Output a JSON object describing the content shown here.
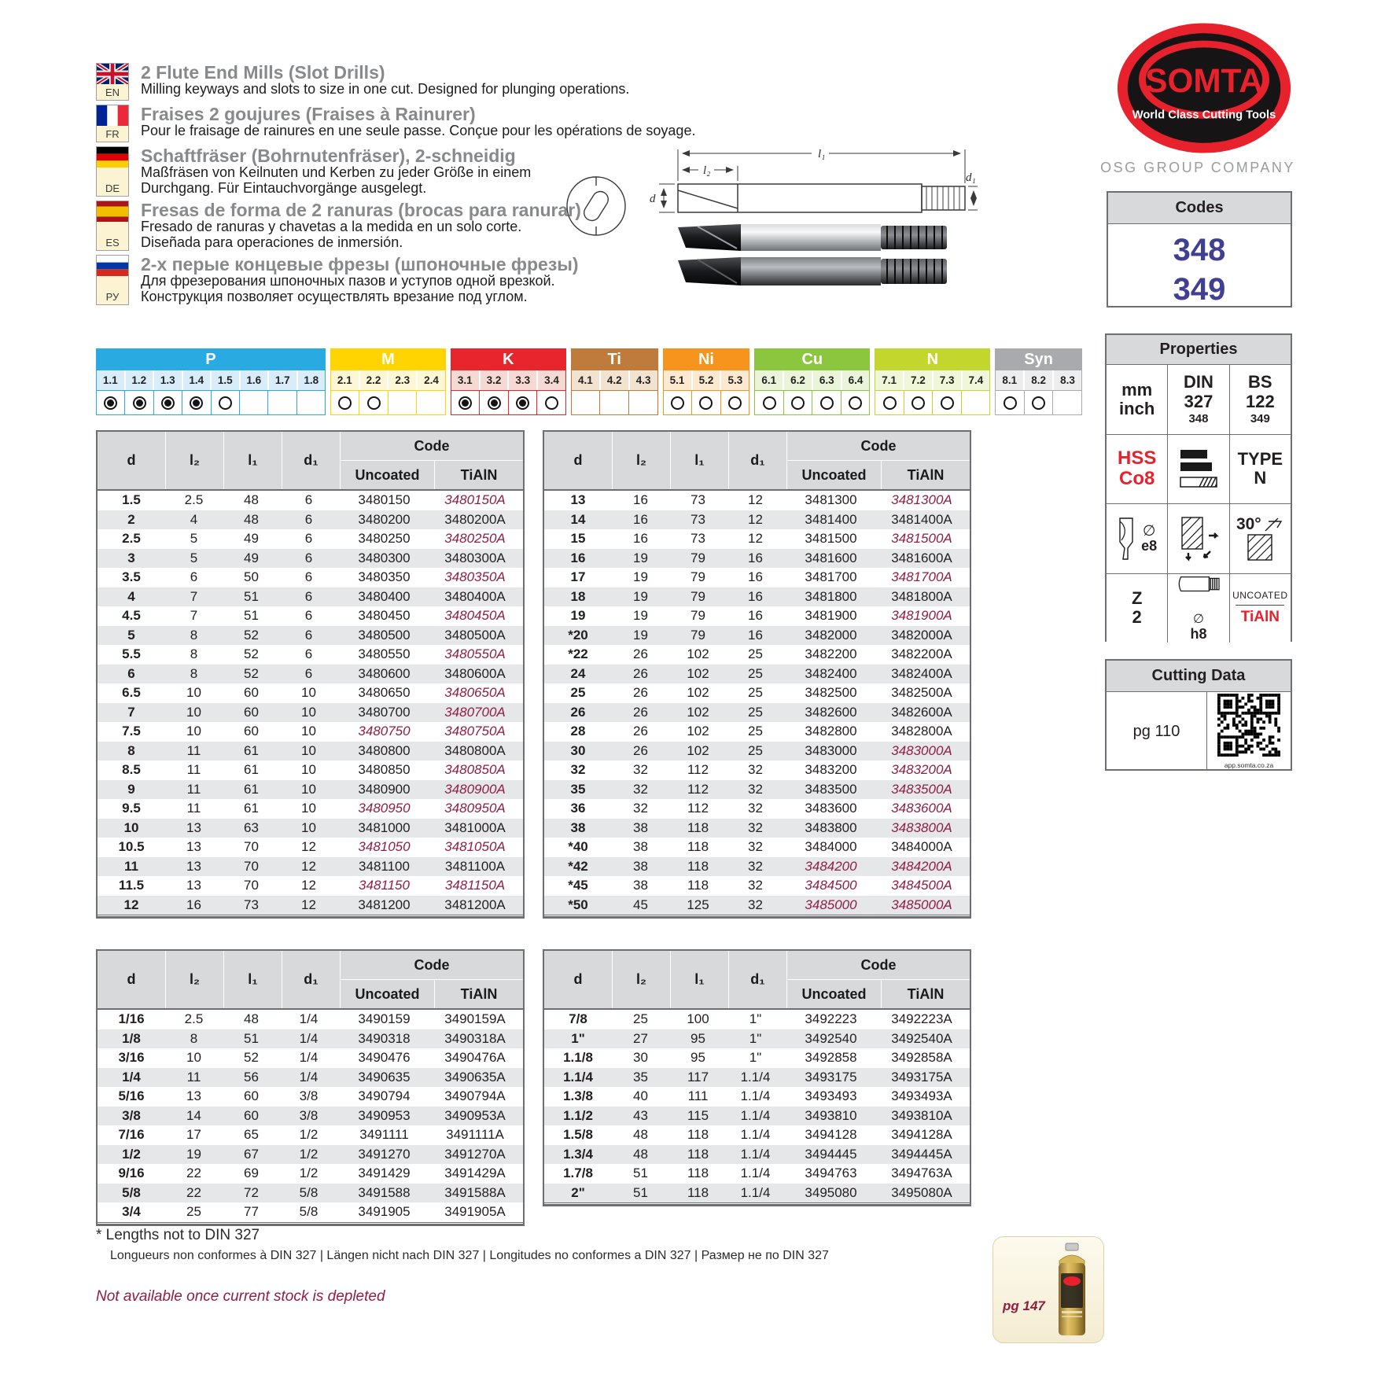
{
  "header": {
    "languages": [
      {
        "code": "EN",
        "title": "2 Flute End Mills (Slot Drills)",
        "desc": "Milling keyways and slots to size in one cut. Designed for plunging operations."
      },
      {
        "code": "FR",
        "title": "Fraises 2 goujures (Fraises à Rainurer)",
        "desc": "Pour le fraisage de rainures en une seule passe. Conçue pour les opérations de soyage."
      },
      {
        "code": "DE",
        "title": "Schaftfräser (Bohrnutenfräser), 2-schneidig",
        "desc": "Maßfräsen von Keilnuten und Kerben zu jeder Größe in einem\nDurchgang. Für Eintauchvorgänge ausgelegt."
      },
      {
        "code": "ES",
        "title": "Fresas de forma de 2 ranuras (brocas para ranurar)",
        "desc": "Fresado de ranuras y chavetas a la medida en un solo corte.\nDiseñada para operaciones de inmersión."
      },
      {
        "code": "РУ",
        "title": "2-х перые концевые фрезы (шпоночные фрезы)",
        "desc": "Для фрезерования шпоночных пазов и уступов одной врезкой.\nКонструкция позволяет осуществлять врезание под углом."
      }
    ],
    "diagram_labels": {
      "l1": "l₁",
      "l2": "l₂",
      "d": "d",
      "d1": "d₁"
    }
  },
  "materials": {
    "groups": [
      {
        "name": "P",
        "color": "#29abe2",
        "tint": "#d8ecf9",
        "cells": [
          [
            "1.1",
            "filled"
          ],
          [
            "1.2",
            "filled"
          ],
          [
            "1.3",
            "filled"
          ],
          [
            "1.4",
            "filled"
          ],
          [
            "1.5",
            "empty"
          ],
          [
            "1.6",
            "none"
          ],
          [
            "1.7",
            "none"
          ],
          [
            "1.8",
            "none"
          ]
        ]
      },
      {
        "name": "M",
        "color": "#ffd400",
        "tint": "#fdf7d5",
        "cells": [
          [
            "2.1",
            "empty"
          ],
          [
            "2.2",
            "empty"
          ],
          [
            "2.3",
            "none"
          ],
          [
            "2.4",
            "none"
          ]
        ]
      },
      {
        "name": "K",
        "color": "#e8252d",
        "tint": "#f6d9d2",
        "cells": [
          [
            "3.1",
            "filled"
          ],
          [
            "3.2",
            "filled"
          ],
          [
            "3.3",
            "filled"
          ],
          [
            "3.4",
            "empty"
          ]
        ]
      },
      {
        "name": "Ti",
        "color": "#bf7b3c",
        "tint": "#f2e2d0",
        "cells": [
          [
            "4.1",
            "none"
          ],
          [
            "4.2",
            "none"
          ],
          [
            "4.3",
            "none"
          ]
        ]
      },
      {
        "name": "Ni",
        "color": "#f7941e",
        "tint": "#fde9d0",
        "cells": [
          [
            "5.1",
            "empty"
          ],
          [
            "5.2",
            "empty"
          ],
          [
            "5.3",
            "empty"
          ]
        ]
      },
      {
        "name": "Cu",
        "color": "#8cc63f",
        "tint": "#e9f4d8",
        "cells": [
          [
            "6.1",
            "empty"
          ],
          [
            "6.2",
            "empty"
          ],
          [
            "6.3",
            "empty"
          ],
          [
            "6.4",
            "empty"
          ]
        ]
      },
      {
        "name": "N",
        "color": "#c3d62e",
        "tint": "#f0f6d8",
        "cells": [
          [
            "7.1",
            "empty"
          ],
          [
            "7.2",
            "empty"
          ],
          [
            "7.3",
            "empty"
          ],
          [
            "7.4",
            "none"
          ]
        ]
      },
      {
        "name": "Syn",
        "color": "#a8aaad",
        "tint": "#ededee",
        "cells": [
          [
            "8.1",
            "empty"
          ],
          [
            "8.2",
            "empty"
          ],
          [
            "8.3",
            "none"
          ]
        ]
      }
    ]
  },
  "tables": {
    "headers": {
      "d": "d",
      "l2": "l₂",
      "l1": "l₁",
      "d1": "d₁",
      "code": "Code",
      "uncoated": "Uncoated",
      "tialn": "TiAlN"
    },
    "t1": {
      "rows": [
        [
          "1.5",
          "2.5",
          "48",
          "6",
          "3480150",
          "3480150A",
          0,
          1
        ],
        [
          "2",
          "4",
          "48",
          "6",
          "3480200",
          "3480200A",
          0,
          0
        ],
        [
          "2.5",
          "5",
          "49",
          "6",
          "3480250",
          "3480250A",
          0,
          1
        ],
        [
          "3",
          "5",
          "49",
          "6",
          "3480300",
          "3480300A",
          0,
          0
        ],
        [
          "3.5",
          "6",
          "50",
          "6",
          "3480350",
          "3480350A",
          0,
          1
        ],
        [
          "4",
          "7",
          "51",
          "6",
          "3480400",
          "3480400A",
          0,
          0
        ],
        [
          "4.5",
          "7",
          "51",
          "6",
          "3480450",
          "3480450A",
          0,
          1
        ],
        [
          "5",
          "8",
          "52",
          "6",
          "3480500",
          "3480500A",
          0,
          0
        ],
        [
          "5.5",
          "8",
          "52",
          "6",
          "3480550",
          "3480550A",
          0,
          1
        ],
        [
          "6",
          "8",
          "52",
          "6",
          "3480600",
          "3480600A",
          0,
          0
        ],
        [
          "6.5",
          "10",
          "60",
          "10",
          "3480650",
          "3480650A",
          0,
          1
        ],
        [
          "7",
          "10",
          "60",
          "10",
          "3480700",
          "3480700A",
          0,
          1
        ],
        [
          "7.5",
          "10",
          "60",
          "10",
          "3480750",
          "3480750A",
          1,
          1
        ],
        [
          "8",
          "11",
          "61",
          "10",
          "3480800",
          "3480800A",
          0,
          0
        ],
        [
          "8.5",
          "11",
          "61",
          "10",
          "3480850",
          "3480850A",
          0,
          1
        ],
        [
          "9",
          "11",
          "61",
          "10",
          "3480900",
          "3480900A",
          0,
          1
        ],
        [
          "9.5",
          "11",
          "61",
          "10",
          "3480950",
          "3480950A",
          1,
          1
        ],
        [
          "10",
          "13",
          "63",
          "10",
          "3481000",
          "3481000A",
          0,
          0
        ],
        [
          "10.5",
          "13",
          "70",
          "12",
          "3481050",
          "3481050A",
          1,
          1
        ],
        [
          "11",
          "13",
          "70",
          "12",
          "3481100",
          "3481100A",
          0,
          0
        ],
        [
          "11.5",
          "13",
          "70",
          "12",
          "3481150",
          "3481150A",
          1,
          1
        ],
        [
          "12",
          "16",
          "73",
          "12",
          "3481200",
          "3481200A",
          0,
          0
        ]
      ]
    },
    "t2": {
      "rows": [
        [
          "13",
          "16",
          "73",
          "12",
          "3481300",
          "3481300A",
          0,
          1
        ],
        [
          "14",
          "16",
          "73",
          "12",
          "3481400",
          "3481400A",
          0,
          0
        ],
        [
          "15",
          "16",
          "73",
          "12",
          "3481500",
          "3481500A",
          0,
          1
        ],
        [
          "16",
          "19",
          "79",
          "16",
          "3481600",
          "3481600A",
          0,
          0
        ],
        [
          "17",
          "19",
          "79",
          "16",
          "3481700",
          "3481700A",
          0,
          1
        ],
        [
          "18",
          "19",
          "79",
          "16",
          "3481800",
          "3481800A",
          0,
          0
        ],
        [
          "19",
          "19",
          "79",
          "16",
          "3481900",
          "3481900A",
          0,
          1
        ],
        [
          "*20",
          "19",
          "79",
          "16",
          "3482000",
          "3482000A",
          0,
          0
        ],
        [
          "*22",
          "26",
          "102",
          "25",
          "3482200",
          "3482200A",
          0,
          0
        ],
        [
          "24",
          "26",
          "102",
          "25",
          "3482400",
          "3482400A",
          0,
          0
        ],
        [
          "25",
          "26",
          "102",
          "25",
          "3482500",
          "3482500A",
          0,
          0
        ],
        [
          "26",
          "26",
          "102",
          "25",
          "3482600",
          "3482600A",
          0,
          0
        ],
        [
          "28",
          "26",
          "102",
          "25",
          "3482800",
          "3482800A",
          0,
          0
        ],
        [
          "30",
          "26",
          "102",
          "25",
          "3483000",
          "3483000A",
          0,
          1
        ],
        [
          "32",
          "32",
          "112",
          "32",
          "3483200",
          "3483200A",
          0,
          1
        ],
        [
          "35",
          "32",
          "112",
          "32",
          "3483500",
          "3483500A",
          0,
          1
        ],
        [
          "36",
          "32",
          "112",
          "32",
          "3483600",
          "3483600A",
          0,
          1
        ],
        [
          "38",
          "38",
          "118",
          "32",
          "3483800",
          "3483800A",
          0,
          1
        ],
        [
          "*40",
          "38",
          "118",
          "32",
          "3484000",
          "3484000A",
          0,
          0
        ],
        [
          "*42",
          "38",
          "118",
          "32",
          "3484200",
          "3484200A",
          1,
          1
        ],
        [
          "*45",
          "38",
          "118",
          "32",
          "3484500",
          "3484500A",
          1,
          1
        ],
        [
          "*50",
          "45",
          "125",
          "32",
          "3485000",
          "3485000A",
          1,
          1
        ]
      ]
    },
    "t3": {
      "rows": [
        [
          "1/16",
          "2.5",
          "48",
          "1/4",
          "3490159",
          "3490159A",
          0,
          0
        ],
        [
          "1/8",
          "8",
          "51",
          "1/4",
          "3490318",
          "3490318A",
          0,
          0
        ],
        [
          "3/16",
          "10",
          "52",
          "1/4",
          "3490476",
          "3490476A",
          0,
          0
        ],
        [
          "1/4",
          "11",
          "56",
          "1/4",
          "3490635",
          "3490635A",
          0,
          0
        ],
        [
          "5/16",
          "13",
          "60",
          "3/8",
          "3490794",
          "3490794A",
          0,
          0
        ],
        [
          "3/8",
          "14",
          "60",
          "3/8",
          "3490953",
          "3490953A",
          0,
          0
        ],
        [
          "7/16",
          "17",
          "65",
          "1/2",
          "3491111",
          "3491111A",
          0,
          0
        ],
        [
          "1/2",
          "19",
          "67",
          "1/2",
          "3491270",
          "3491270A",
          0,
          0
        ],
        [
          "9/16",
          "22",
          "69",
          "1/2",
          "3491429",
          "3491429A",
          0,
          0
        ],
        [
          "5/8",
          "22",
          "72",
          "5/8",
          "3491588",
          "3491588A",
          0,
          0
        ],
        [
          "3/4",
          "25",
          "77",
          "5/8",
          "3491905",
          "3491905A",
          0,
          0
        ]
      ]
    },
    "t4": {
      "rows": [
        [
          "7/8",
          "25",
          "100",
          "1\"",
          "3492223",
          "3492223A",
          0,
          0
        ],
        [
          "1\"",
          "27",
          "95",
          "1\"",
          "3492540",
          "3492540A",
          0,
          0
        ],
        [
          "1.1/8",
          "30",
          "95",
          "1\"",
          "3492858",
          "3492858A",
          0,
          0
        ],
        [
          "1.1/4",
          "35",
          "117",
          "1.1/4",
          "3493175",
          "3493175A",
          0,
          0
        ],
        [
          "1.3/8",
          "40",
          "111",
          "1.1/4",
          "3493493",
          "3493493A",
          0,
          0
        ],
        [
          "1.1/2",
          "43",
          "115",
          "1.1/4",
          "3493810",
          "3493810A",
          0,
          0
        ],
        [
          "1.5/8",
          "48",
          "118",
          "1.1/4",
          "3494128",
          "3494128A",
          0,
          0
        ],
        [
          "1.3/4",
          "48",
          "118",
          "1.1/4",
          "3494445",
          "3494445A",
          0,
          0
        ],
        [
          "1.7/8",
          "51",
          "118",
          "1.1/4",
          "3494763",
          "3494763A",
          0,
          0
        ],
        [
          "2\"",
          "51",
          "118",
          "1.1/4",
          "3495080",
          "3495080A",
          0,
          0
        ]
      ]
    }
  },
  "sidebar": {
    "logo": {
      "brand": "SOMTA",
      "tagline": "World Class Cutting Tools"
    },
    "company": "OSG GROUP COMPANY",
    "codes": {
      "title": "Codes",
      "values": [
        "348",
        "349"
      ]
    },
    "properties": {
      "title": "Properties",
      "units": "mm\ninch",
      "din": "DIN\n327",
      "din_sub": "348",
      "bs": "BS\n122",
      "bs_sub": "349",
      "material": "HSS\nCo8",
      "type": "TYPE\nN",
      "mill_sym": "∅",
      "mill_tol": "e8",
      "angle": "30°",
      "flutes": "Z\n2",
      "shank_sym": "∅",
      "shank_tol": "h8",
      "coating_top": "UNCOATED",
      "coating_bottom": "TiAlN"
    },
    "cutting_data": {
      "title": "Cutting Data",
      "page": "pg 110",
      "qr_caption": "app.somta.co.za"
    }
  },
  "footnotes": {
    "star": "* Lengths not to DIN 327",
    "translations": "Longueurs non conformes à DIN 327 | Längen nicht nach DIN 327 | Longitudes no conformes a DIN 327 | Размер не по DIN 327",
    "availability": "Not available once current stock is depleted",
    "can_page": "pg 147"
  }
}
